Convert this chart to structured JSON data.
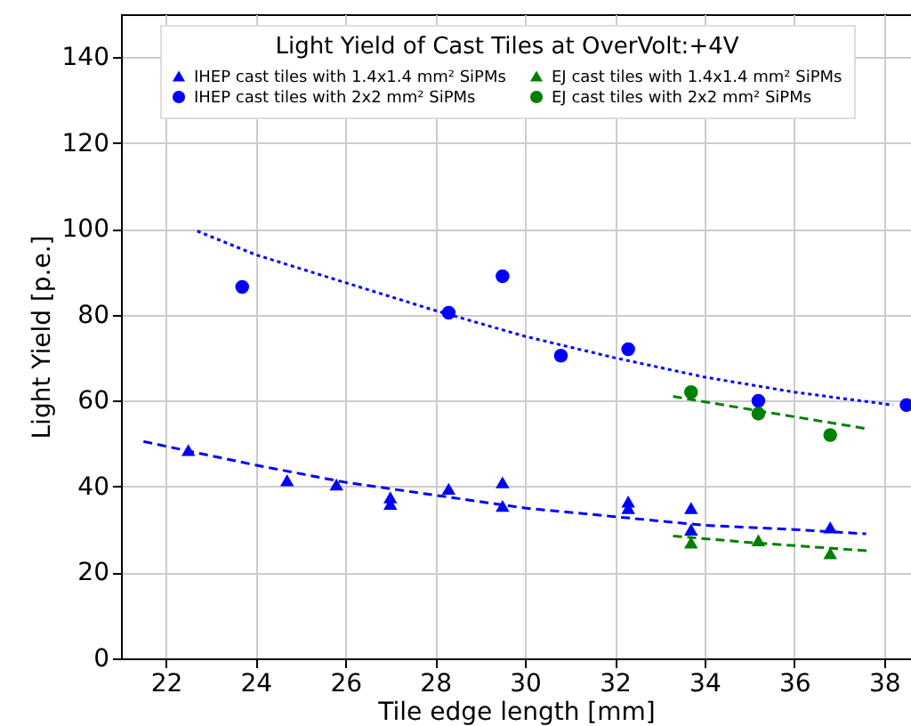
{
  "chart_data": {
    "type": "scatter",
    "xlabel": "Tile edge length [mm]",
    "ylabel": "Light Yield [p.e.]",
    "legend_title": "Light Yield of Cast Tiles at OverVolt:+4V",
    "xlim": [
      21,
      38.6
    ],
    "xticks": [
      22,
      24,
      26,
      28,
      30,
      32,
      34,
      36,
      38
    ],
    "ylim": [
      0,
      150
    ],
    "yticks": [
      0,
      20,
      40,
      60,
      80,
      100,
      120,
      140
    ],
    "grid": true,
    "legend": "top",
    "series": [
      {
        "name": "IHEP cast tiles with 1.4x1.4 mm² SiPMs",
        "color": "#0000ff",
        "marker": "triangle",
        "x": [
          22.5,
          24.7,
          25.8,
          27,
          27,
          28.3,
          29.5,
          29.5,
          32.3,
          32.3,
          33.7,
          33.7,
          36.8
        ],
        "values": [
          48.5,
          41.5,
          40.5,
          37.5,
          36,
          39.5,
          41,
          35.5,
          36.5,
          35,
          35,
          30,
          30.5
        ]
      },
      {
        "name": "IHEP cast tiles with 2x2 mm² SiPMs",
        "color": "#0000ff",
        "marker": "circle",
        "x": [
          23.7,
          28.3,
          29.5,
          30.8,
          32.3,
          35.2,
          38.5
        ],
        "values": [
          86.5,
          80.5,
          89,
          70.5,
          72,
          60,
          59
        ]
      },
      {
        "name": "EJ cast tiles with 1.4x1.4 mm² SiPMs",
        "color": "#008000",
        "marker": "triangle",
        "x": [
          33.7,
          35.2,
          36.8
        ],
        "values": [
          27,
          27.5,
          24.5
        ]
      },
      {
        "name": "EJ cast tiles with 2x2 mm² SiPMs",
        "color": "#008000",
        "marker": "circle",
        "x": [
          33.7,
          35.2,
          36.8
        ],
        "values": [
          62,
          57,
          52
        ]
      },
      {
        "type": "line",
        "color": "#0000ff",
        "line_style": "dashed",
        "x": [
          21.5,
          24,
          26,
          28,
          30,
          32,
          34,
          36,
          37.6
        ],
        "values": [
          50.5,
          45,
          41,
          38,
          35,
          33,
          31,
          30,
          29
        ]
      },
      {
        "type": "line",
        "color": "#0000ff",
        "line_style": "dotted",
        "x": [
          22.7,
          24,
          26,
          28,
          30,
          32,
          34,
          36,
          38.2
        ],
        "values": [
          99.5,
          94,
          87.5,
          81,
          75,
          70,
          65.5,
          62,
          59
        ]
      },
      {
        "type": "line",
        "color": "#008000",
        "line_style": "dashed",
        "x": [
          33.3,
          35,
          37.6
        ],
        "values": [
          61,
          58,
          53.5
        ]
      },
      {
        "type": "line",
        "color": "#008000",
        "line_style": "dashed",
        "x": [
          33.3,
          35,
          37.7
        ],
        "values": [
          28.5,
          27,
          25
        ]
      }
    ]
  }
}
